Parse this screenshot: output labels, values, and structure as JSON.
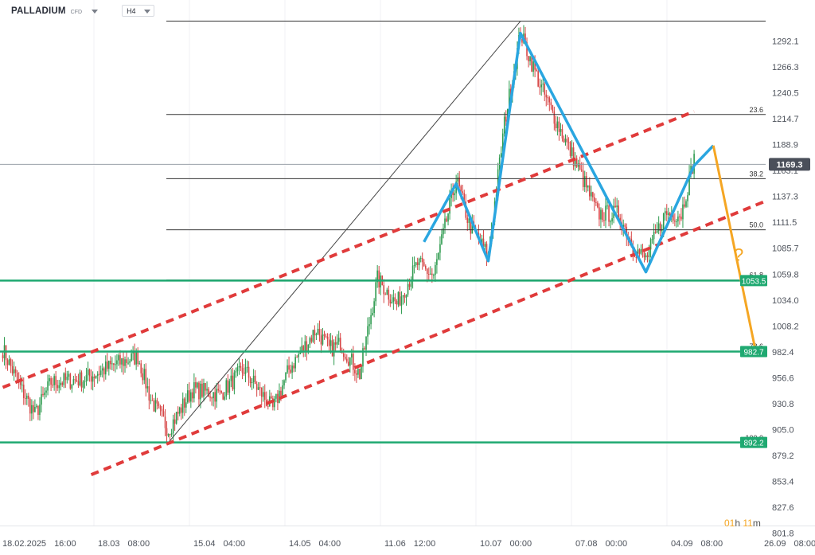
{
  "header": {
    "symbol": "PALLADIUM",
    "instrument_type": "CFD",
    "timeframe": "H4"
  },
  "countdown": {
    "hours": "01",
    "h_unit": "h",
    "minutes": "11",
    "m_unit": "m"
  },
  "colors": {
    "bull": "#2e9b4f",
    "bear": "#d64545",
    "channel": "#e03b3b",
    "pattern": "#2aa6e0",
    "projection": "#f5a623",
    "support": "#1fa971",
    "price_tag": "#4a4f5a",
    "fib_line": "#333333"
  },
  "chart_data": {
    "type": "candlestick",
    "ylim": [
      801.8,
      1318
    ],
    "y_axis_ticks": [
      "1292.1",
      "1266.3",
      "1240.5",
      "1214.7",
      "1188.9",
      "1163.1",
      "1137.3",
      "1111.5",
      "1085.7",
      "1059.8",
      "1034.0",
      "1008.2",
      "982.4",
      "956.6",
      "930.8",
      "905.0",
      "879.2",
      "853.4",
      "827.6",
      "801.8"
    ],
    "x_axis_ticks": [
      {
        "label": "18.02.2025",
        "time": "16:00"
      },
      {
        "label": "18.03",
        "time": "08:00"
      },
      {
        "label": "15.04",
        "time": "04:00"
      },
      {
        "label": "14.05",
        "time": "04:00"
      },
      {
        "label": "11.06",
        "time": "12:00"
      },
      {
        "label": "10.07",
        "time": "00:00"
      },
      {
        "label": "07.08",
        "time": "00:00"
      },
      {
        "label": "04.09",
        "time": "08:00"
      },
      {
        "label": "26.09",
        "time": "08:00"
      }
    ],
    "current_price": "1169.3",
    "support_levels": [
      {
        "label": "1053.5",
        "value": 1053.5
      },
      {
        "label": "982.7",
        "value": 982.7
      },
      {
        "label": "892.2",
        "value": 892.2
      }
    ],
    "fibonacci": {
      "high": 1312,
      "levels": [
        {
          "label": "23.6",
          "value": 1219
        },
        {
          "label": "38.2",
          "value": 1155
        },
        {
          "label": "50.0",
          "value": 1104
        },
        {
          "label": "61.8",
          "value": 1054
        },
        {
          "label": "78.6",
          "value": 983
        },
        {
          "label": "100.0",
          "value": 892
        }
      ]
    },
    "annotation_question": "?",
    "price_anchors": [
      {
        "i": 0,
        "p": 985
      },
      {
        "i": 10,
        "p": 950
      },
      {
        "i": 20,
        "p": 920
      },
      {
        "i": 30,
        "p": 952
      },
      {
        "i": 50,
        "p": 955
      },
      {
        "i": 70,
        "p": 970
      },
      {
        "i": 84,
        "p": 978
      },
      {
        "i": 92,
        "p": 935
      },
      {
        "i": 103,
        "p": 905
      },
      {
        "i": 118,
        "p": 945
      },
      {
        "i": 135,
        "p": 940
      },
      {
        "i": 150,
        "p": 965
      },
      {
        "i": 168,
        "p": 925
      },
      {
        "i": 178,
        "p": 965
      },
      {
        "i": 195,
        "p": 1005
      },
      {
        "i": 203,
        "p": 985
      },
      {
        "i": 210,
        "p": 990
      },
      {
        "i": 222,
        "p": 960
      },
      {
        "i": 233,
        "p": 1055
      },
      {
        "i": 245,
        "p": 1030
      },
      {
        "i": 258,
        "p": 1070
      },
      {
        "i": 268,
        "p": 1058
      },
      {
        "i": 282,
        "p": 1155
      },
      {
        "i": 290,
        "p": 1110
      },
      {
        "i": 302,
        "p": 1078
      },
      {
        "i": 312,
        "p": 1210
      },
      {
        "i": 322,
        "p": 1300
      },
      {
        "i": 335,
        "p": 1245
      },
      {
        "i": 345,
        "p": 1210
      },
      {
        "i": 358,
        "p": 1165
      },
      {
        "i": 370,
        "p": 1120
      },
      {
        "i": 383,
        "p": 1120
      },
      {
        "i": 393,
        "p": 1085
      },
      {
        "i": 400,
        "p": 1075
      },
      {
        "i": 412,
        "p": 1120
      },
      {
        "i": 422,
        "p": 1120
      },
      {
        "i": 430,
        "p": 1175
      }
    ],
    "channel": {
      "upper": [
        [
          0,
          947
        ],
        [
          430,
          1222
        ]
      ],
      "lower": [
        [
          55,
          860
        ],
        [
          475,
          1133
        ]
      ]
    },
    "pattern_path": [
      [
        262,
        1092
      ],
      [
        282,
        1150
      ],
      [
        302,
        1073
      ],
      [
        322,
        1300
      ],
      [
        400,
        1062
      ],
      [
        430,
        1168
      ],
      [
        442,
        1188
      ]
    ],
    "projection_path": [
      [
        442,
        1188
      ],
      [
        468,
        985
      ]
    ]
  }
}
